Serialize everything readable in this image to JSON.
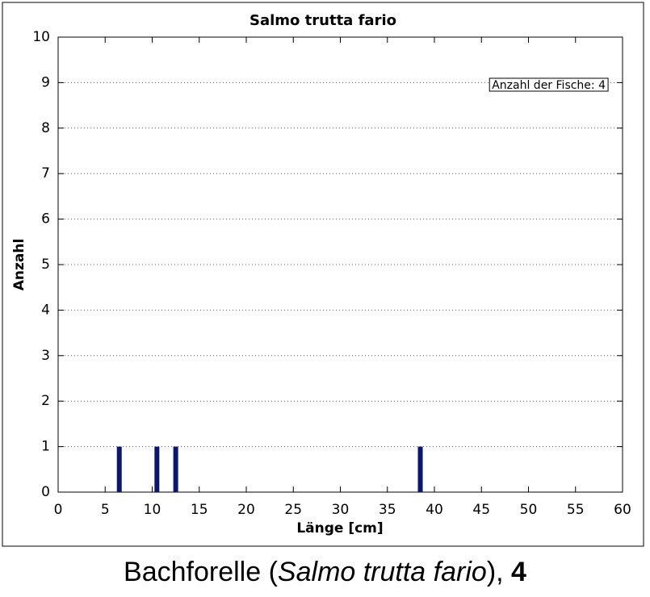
{
  "chart_data": {
    "type": "bar",
    "title": "Salmo trutta fario",
    "xlabel": "Länge [cm]",
    "ylabel": "Anzahl",
    "annotation": "Anzahl der Fische: 4",
    "x": [
      6.5,
      10.5,
      12.5,
      38.5
    ],
    "values": [
      1,
      1,
      1,
      1
    ],
    "color": "#0a1670",
    "xlim": [
      0,
      60
    ],
    "xticks": [
      0,
      5,
      10,
      15,
      20,
      25,
      30,
      35,
      40,
      45,
      50,
      55,
      60
    ],
    "ylim": [
      0,
      10
    ],
    "yticks": [
      0,
      1,
      2,
      3,
      4,
      5,
      6,
      7,
      8,
      9,
      10
    ],
    "grid": true
  },
  "caption": {
    "prefix": "Bachforelle (",
    "italic": "Salmo trutta fario",
    "suffix": "), ",
    "bold": "4"
  }
}
